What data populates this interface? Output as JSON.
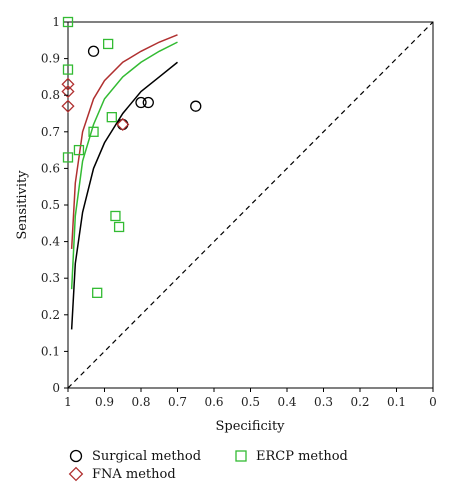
{
  "chart_data": {
    "type": "scatter",
    "title": "",
    "xlabel": "Specificity",
    "ylabel": "Sensitivity",
    "xlim": [
      1,
      0
    ],
    "ylim": [
      0,
      1
    ],
    "x_ticks": [
      "1",
      "0.9",
      "0.8",
      "0.7",
      "0.6",
      "0.5",
      "0.4",
      "0.3",
      "0.2",
      "0.1",
      "0"
    ],
    "y_ticks": [
      "0",
      "0.1",
      "0.2",
      "0.3",
      "0.4",
      "0.5",
      "0.6",
      "0.7",
      "0.8",
      "0.9",
      "1"
    ],
    "grid": false,
    "legend_position": "bottom",
    "series": [
      {
        "name": "Surgical method",
        "marker": "circle",
        "color": "#000000",
        "points": [
          {
            "specificity": 0.93,
            "sensitivity": 0.92
          },
          {
            "specificity": 0.8,
            "sensitivity": 0.78
          },
          {
            "specificity": 0.78,
            "sensitivity": 0.78
          },
          {
            "specificity": 0.65,
            "sensitivity": 0.77
          },
          {
            "specificity": 0.85,
            "sensitivity": 0.72
          }
        ]
      },
      {
        "name": "FNA method",
        "marker": "diamond",
        "color": "#b03030",
        "points": [
          {
            "specificity": 1.0,
            "sensitivity": 0.83
          },
          {
            "specificity": 1.0,
            "sensitivity": 0.81
          },
          {
            "specificity": 1.0,
            "sensitivity": 0.77
          },
          {
            "specificity": 0.85,
            "sensitivity": 0.72
          }
        ]
      },
      {
        "name": "ERCP method",
        "marker": "square",
        "color": "#33bb33",
        "points": [
          {
            "specificity": 1.0,
            "sensitivity": 1.0
          },
          {
            "specificity": 0.89,
            "sensitivity": 0.94
          },
          {
            "specificity": 1.0,
            "sensitivity": 0.87
          },
          {
            "specificity": 0.88,
            "sensitivity": 0.74
          },
          {
            "specificity": 0.93,
            "sensitivity": 0.7
          },
          {
            "specificity": 0.97,
            "sensitivity": 0.65
          },
          {
            "specificity": 1.0,
            "sensitivity": 0.63
          },
          {
            "specificity": 0.87,
            "sensitivity": 0.47
          },
          {
            "specificity": 0.86,
            "sensitivity": 0.44
          },
          {
            "specificity": 0.92,
            "sensitivity": 0.26
          }
        ]
      }
    ],
    "curves": [
      {
        "for": "Surgical method",
        "color": "#000000",
        "points": [
          [
            0.99,
            0.16
          ],
          [
            0.98,
            0.34
          ],
          [
            0.96,
            0.48
          ],
          [
            0.93,
            0.6
          ],
          [
            0.9,
            0.67
          ],
          [
            0.85,
            0.75
          ],
          [
            0.8,
            0.81
          ],
          [
            0.75,
            0.85
          ],
          [
            0.7,
            0.89
          ]
        ]
      },
      {
        "for": "FNA method",
        "color": "#b03030",
        "points": [
          [
            0.99,
            0.38
          ],
          [
            0.98,
            0.56
          ],
          [
            0.96,
            0.7
          ],
          [
            0.93,
            0.79
          ],
          [
            0.9,
            0.84
          ],
          [
            0.85,
            0.89
          ],
          [
            0.8,
            0.92
          ],
          [
            0.75,
            0.945
          ],
          [
            0.7,
            0.965
          ]
        ]
      },
      {
        "for": "ERCP method",
        "color": "#33bb33",
        "points": [
          [
            0.99,
            0.27
          ],
          [
            0.98,
            0.47
          ],
          [
            0.96,
            0.62
          ],
          [
            0.93,
            0.72
          ],
          [
            0.9,
            0.79
          ],
          [
            0.85,
            0.85
          ],
          [
            0.8,
            0.89
          ],
          [
            0.75,
            0.92
          ],
          [
            0.7,
            0.945
          ]
        ]
      }
    ],
    "reference_line": {
      "style": "dashed",
      "from": [
        1,
        0
      ],
      "to": [
        0,
        1
      ]
    }
  }
}
